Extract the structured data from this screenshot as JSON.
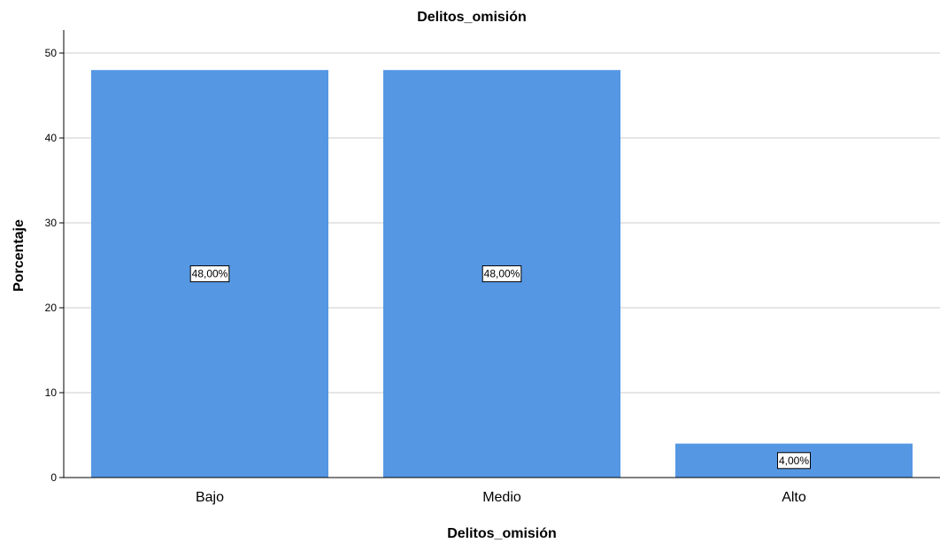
{
  "chart_data": {
    "type": "bar",
    "title": "Delitos_omisión",
    "xlabel": "Delitos_omisión",
    "ylabel": "Porcentaje",
    "categories": [
      "Bajo",
      "Medio",
      "Alto"
    ],
    "values": [
      48,
      48,
      4
    ],
    "data_labels": [
      "48,00%",
      "48,00%",
      "4,00%"
    ],
    "ylim": [
      0,
      50
    ],
    "yticks": [
      0,
      10,
      20,
      30,
      40,
      50
    ],
    "grid": true,
    "legend": "none",
    "bar_color": "#5597e3",
    "grid_color": "#cccccc"
  }
}
